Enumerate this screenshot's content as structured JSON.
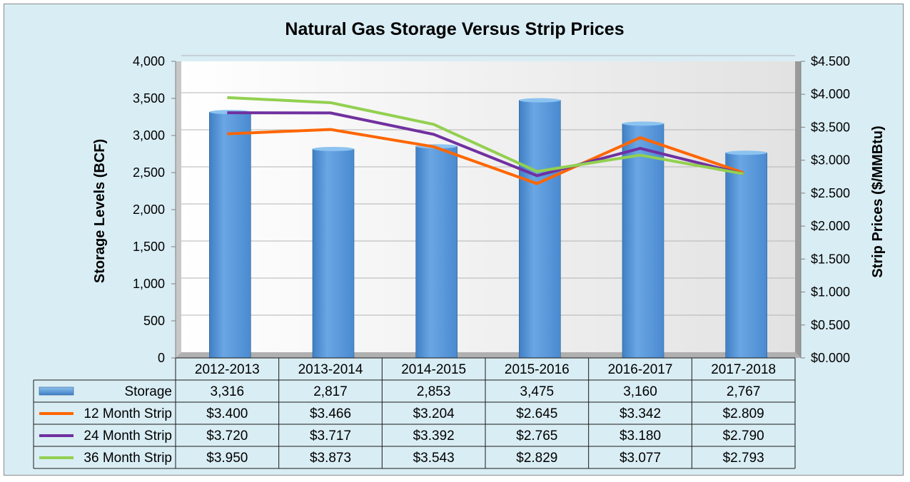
{
  "chart_data": {
    "type": "bar",
    "title": "Natural Gas Storage Versus Strip Prices",
    "ylabel_left": "Storage Levels (BCF)",
    "ylabel_right": "Strip Prices ($/MMBtu)",
    "ylim_left": [
      0,
      4000
    ],
    "ylim_right": [
      0,
      4.5
    ],
    "yticks_left": [
      "0",
      "500",
      "1,000",
      "1,500",
      "2,000",
      "2,500",
      "3,000",
      "3,500",
      "4,000"
    ],
    "yticks_right": [
      "$0.000",
      "$0.500",
      "$1.000",
      "$1.500",
      "$2.000",
      "$2.500",
      "$3.000",
      "$3.500",
      "$4.000",
      "$4.500"
    ],
    "grid": true,
    "legend": "data-table",
    "categories": [
      "2012-2013",
      "2013-2014",
      "2014-2015",
      "2015-2016",
      "2016-2017",
      "2017-2018"
    ],
    "series": [
      {
        "name": "Storage",
        "type": "bar",
        "axis": "left",
        "color": "#5b9bd5",
        "values": [
          3316,
          2817,
          2853,
          3475,
          3160,
          2767
        ],
        "labels": [
          "3,316",
          "2,817",
          "2,853",
          "3,475",
          "3,160",
          "2,767"
        ]
      },
      {
        "name": "12 Month Strip",
        "type": "line",
        "axis": "right",
        "color": "#ff6600",
        "values": [
          3.4,
          3.466,
          3.204,
          2.645,
          3.342,
          2.809
        ],
        "labels": [
          "$3.400",
          "$3.466",
          "$3.204",
          "$2.645",
          "$3.342",
          "$2.809"
        ]
      },
      {
        "name": "24 Month Strip",
        "type": "line",
        "axis": "right",
        "color": "#7030a0",
        "values": [
          3.72,
          3.717,
          3.392,
          2.765,
          3.18,
          2.79
        ],
        "labels": [
          "$3.720",
          "$3.717",
          "$3.392",
          "$2.765",
          "$3.180",
          "$2.790"
        ]
      },
      {
        "name": "36 Month Strip",
        "type": "line",
        "axis": "right",
        "color": "#92d050",
        "values": [
          3.95,
          3.873,
          3.543,
          2.829,
          3.077,
          2.793
        ],
        "labels": [
          "$3.950",
          "$3.873",
          "$3.543",
          "$2.829",
          "$3.077",
          "$2.793"
        ]
      }
    ]
  }
}
